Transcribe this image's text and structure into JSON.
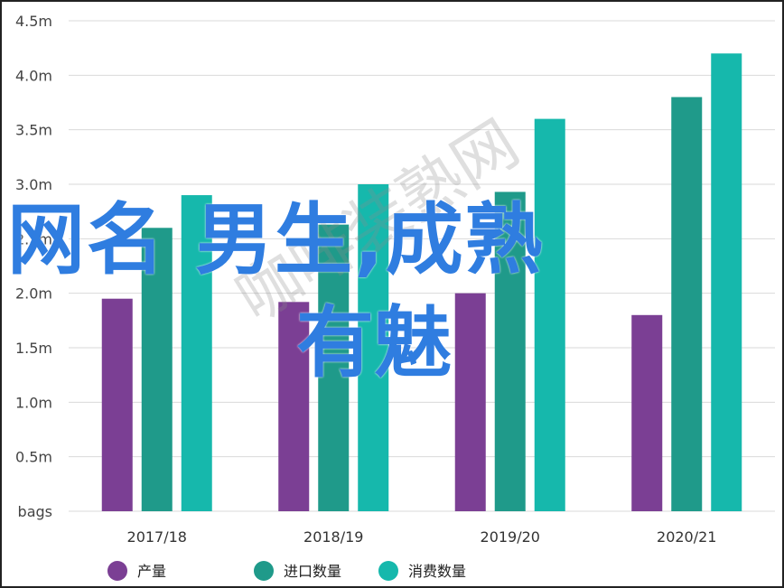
{
  "chart_data": {
    "type": "bar",
    "categories": [
      "2017/18",
      "2018/19",
      "2019/20",
      "2020/21"
    ],
    "series": [
      {
        "name": "产量",
        "color": "#7b3f94",
        "values": [
          1.95,
          1.92,
          2.0,
          1.8
        ]
      },
      {
        "name": "进口数量",
        "color": "#1f9a8a",
        "values": [
          2.6,
          2.63,
          2.93,
          3.8
        ]
      },
      {
        "name": "消费数量",
        "color": "#16b8ac",
        "values": [
          2.9,
          3.0,
          3.6,
          4.2
        ]
      }
    ],
    "yticks": [
      "bags",
      "0.5m",
      "1.0m",
      "1.5m",
      "2.0m",
      "2.5m",
      "3.0m",
      "3.5m",
      "4.0m",
      "4.5m"
    ],
    "ylim": [
      0,
      4.5
    ],
    "grid": true,
    "legend_position": "bottom",
    "title": "",
    "xlabel": "",
    "ylabel": ""
  },
  "overlay": {
    "title_line1": "网名 男生,成熟",
    "title_line2": "有魅",
    "watermark": "咖啡装熟网"
  }
}
